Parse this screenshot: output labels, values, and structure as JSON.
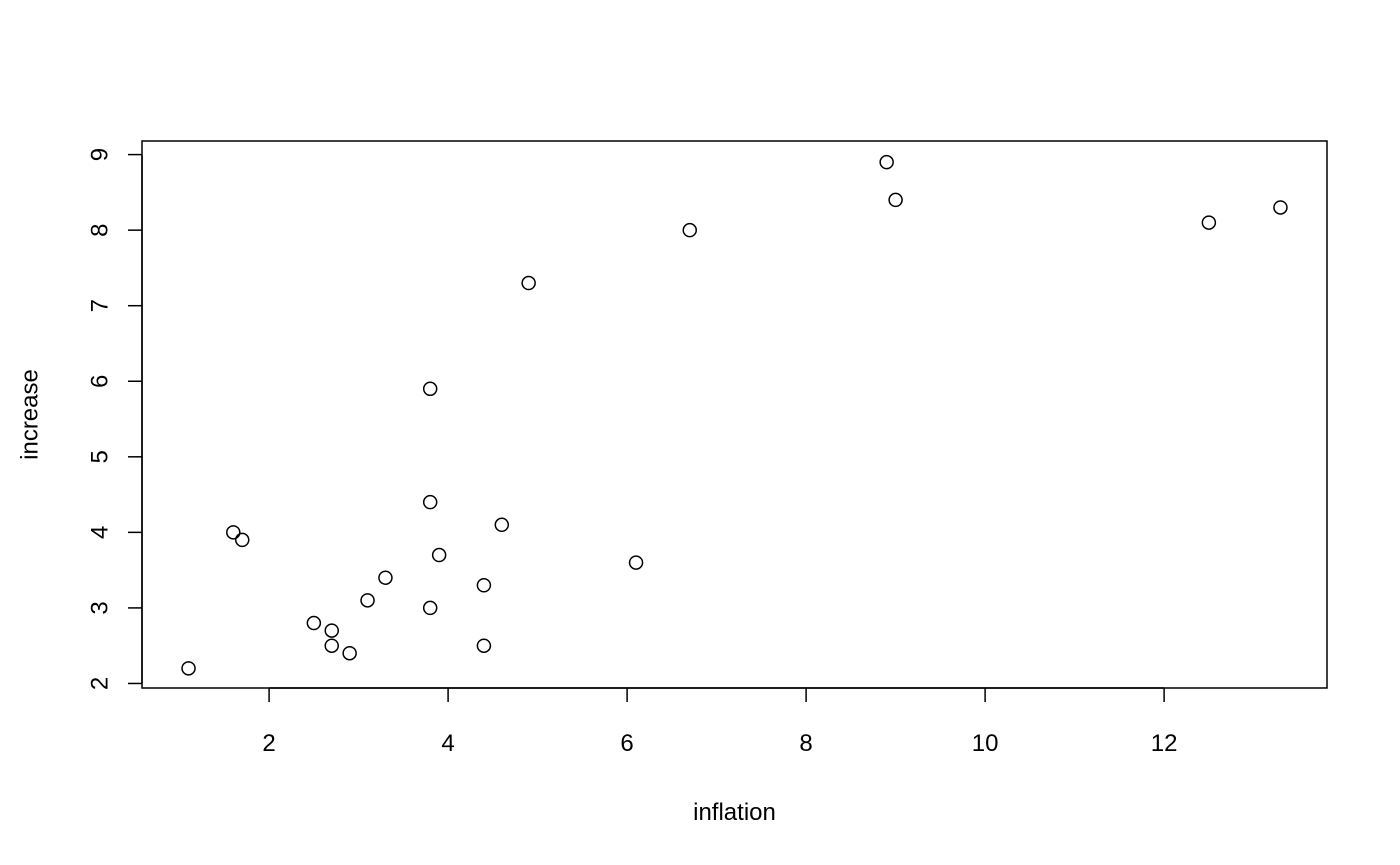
{
  "chart_data": {
    "type": "scatter",
    "title": "",
    "xlabel": "inflation",
    "ylabel": "increase",
    "xlim": [
      0.58,
      13.82
    ],
    "ylim": [
      1.94,
      9.18
    ],
    "xticks": [
      2,
      4,
      6,
      8,
      10,
      12
    ],
    "yticks": [
      2,
      3,
      4,
      5,
      6,
      7,
      8,
      9
    ],
    "grid": false,
    "marker": "open-circle",
    "colors": {
      "stroke": "#000000",
      "background": "#ffffff"
    },
    "points": [
      {
        "x": 1.1,
        "y": 2.2
      },
      {
        "x": 1.6,
        "y": 4.0
      },
      {
        "x": 1.7,
        "y": 3.9
      },
      {
        "x": 2.5,
        "y": 2.8
      },
      {
        "x": 2.7,
        "y": 2.7
      },
      {
        "x": 2.7,
        "y": 2.5
      },
      {
        "x": 2.9,
        "y": 2.4
      },
      {
        "x": 3.1,
        "y": 3.1
      },
      {
        "x": 3.3,
        "y": 3.4
      },
      {
        "x": 3.8,
        "y": 5.9
      },
      {
        "x": 3.8,
        "y": 4.4
      },
      {
        "x": 3.8,
        "y": 3.0
      },
      {
        "x": 3.9,
        "y": 3.7
      },
      {
        "x": 4.4,
        "y": 3.3
      },
      {
        "x": 4.4,
        "y": 2.5
      },
      {
        "x": 4.6,
        "y": 4.1
      },
      {
        "x": 4.9,
        "y": 7.3
      },
      {
        "x": 6.1,
        "y": 3.6
      },
      {
        "x": 6.7,
        "y": 8.0
      },
      {
        "x": 8.9,
        "y": 8.9
      },
      {
        "x": 9.0,
        "y": 8.4
      },
      {
        "x": 12.5,
        "y": 8.1
      },
      {
        "x": 13.3,
        "y": 8.3
      }
    ]
  }
}
